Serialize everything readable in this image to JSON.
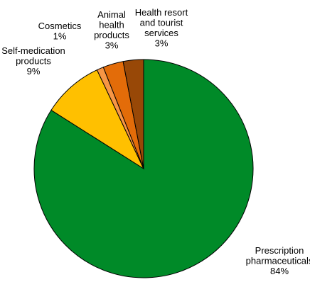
{
  "chart_data": {
    "type": "pie",
    "title": "",
    "slices": [
      {
        "name": "Prescription pharmaceuticals",
        "label_lines": [
          "Prescription",
          "pharmaceuticals"
        ],
        "value": 84,
        "value_label": "84%",
        "color": "#008a28"
      },
      {
        "name": "Self-medication products",
        "label_lines": [
          "Self-medication",
          "products"
        ],
        "value": 9,
        "value_label": "9%",
        "color": "#ffc000"
      },
      {
        "name": "Cosmetics",
        "label_lines": [
          "Cosmetics"
        ],
        "value": 1,
        "value_label": "1%",
        "color": "#f79646"
      },
      {
        "name": "Animal health products",
        "label_lines": [
          "Animal",
          "health",
          "products"
        ],
        "value": 3,
        "value_label": "3%",
        "color": "#e36c09"
      },
      {
        "name": "Health resort and tourist services",
        "label_lines": [
          "Health resort",
          "and tourist",
          "services"
        ],
        "value": 3,
        "value_label": "3%",
        "color": "#984807"
      }
    ]
  }
}
